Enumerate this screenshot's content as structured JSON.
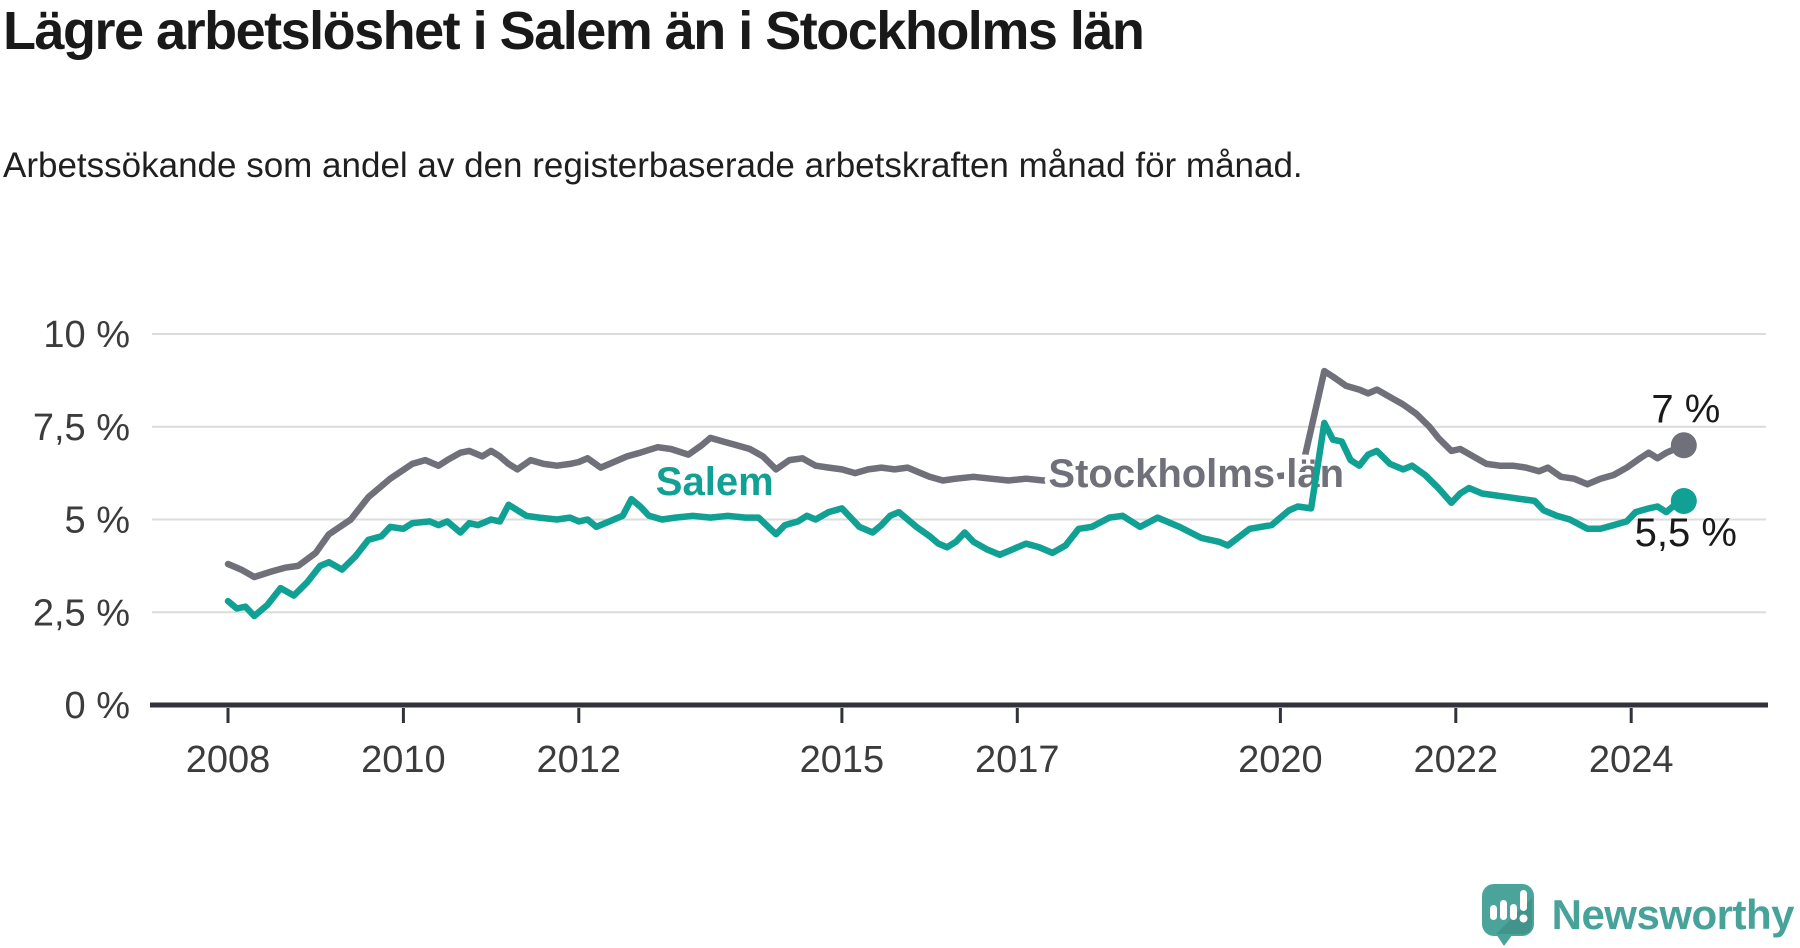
{
  "header": {
    "title": "Lägre arbetslöshet i Salem än i Stockholms län",
    "subtitle": "Arbetssökande som andel av den registerbaserade arbetskraften månad för månad."
  },
  "footer": {
    "brand": "Newsworthy"
  },
  "colors": {
    "salem_teal": "#10a094",
    "stockholm_gray": "#70707a",
    "grid": "#dcdcdc",
    "axis": "#32323a",
    "text_dark": "#1a1a1a",
    "logo_teal": "#4aa49a"
  },
  "chart_data": {
    "type": "line",
    "title": "Lägre arbetslöshet i Salem än i Stockholms län",
    "subtitle": "Arbetssökande som andel av den registerbaserade arbetskraften månad för månad.",
    "unit": "%",
    "grid": true,
    "legend": "inline-labels",
    "x_axis": {
      "ticks": [
        {
          "v": 2008,
          "label": "2008"
        },
        {
          "v": 2010,
          "label": "2010"
        },
        {
          "v": 2012,
          "label": "2012"
        },
        {
          "v": 2015,
          "label": "2015"
        },
        {
          "v": 2017,
          "label": "2017"
        },
        {
          "v": 2020,
          "label": "2020"
        },
        {
          "v": 2022,
          "label": "2022"
        },
        {
          "v": 2024,
          "label": "2024"
        }
      ],
      "range": [
        2007.1,
        2025.6
      ]
    },
    "y_axis": {
      "ticks": [
        {
          "v": 0,
          "label": "0 %"
        },
        {
          "v": 2.5,
          "label": "2,5 %"
        },
        {
          "v": 5,
          "label": "5 %"
        },
        {
          "v": 7.5,
          "label": "7,5 %"
        },
        {
          "v": 10,
          "label": "10 %"
        }
      ],
      "range": [
        0,
        10
      ]
    },
    "series": [
      {
        "name": "Stockholms län",
        "color": "#70707a",
        "end_label": "7 %",
        "end_label_position": "above",
        "label_x": 2019.04,
        "label_y": 5.88,
        "points": [
          [
            2008,
            3.8
          ],
          [
            2008.15,
            3.65
          ],
          [
            2008.3,
            3.45
          ],
          [
            2008.5,
            3.6
          ],
          [
            2008.65,
            3.7
          ],
          [
            2008.8,
            3.75
          ],
          [
            2009,
            4.1
          ],
          [
            2009.15,
            4.6
          ],
          [
            2009.4,
            5.0
          ],
          [
            2009.6,
            5.6
          ],
          [
            2009.85,
            6.1
          ],
          [
            2010.1,
            6.5
          ],
          [
            2010.25,
            6.6
          ],
          [
            2010.4,
            6.45
          ],
          [
            2010.5,
            6.6
          ],
          [
            2010.65,
            6.8
          ],
          [
            2010.75,
            6.85
          ],
          [
            2010.9,
            6.7
          ],
          [
            2011,
            6.85
          ],
          [
            2011.1,
            6.7
          ],
          [
            2011.2,
            6.5
          ],
          [
            2011.3,
            6.35
          ],
          [
            2011.45,
            6.6
          ],
          [
            2011.6,
            6.5
          ],
          [
            2011.75,
            6.45
          ],
          [
            2011.9,
            6.5
          ],
          [
            2012,
            6.55
          ],
          [
            2012.1,
            6.65
          ],
          [
            2012.25,
            6.4
          ],
          [
            2012.4,
            6.55
          ],
          [
            2012.55,
            6.7
          ],
          [
            2012.7,
            6.8
          ],
          [
            2012.9,
            6.95
          ],
          [
            2013.05,
            6.9
          ],
          [
            2013.25,
            6.75
          ],
          [
            2013.4,
            7.0
          ],
          [
            2013.5,
            7.2
          ],
          [
            2013.65,
            7.1
          ],
          [
            2013.8,
            7.0
          ],
          [
            2013.95,
            6.9
          ],
          [
            2014.1,
            6.7
          ],
          [
            2014.25,
            6.35
          ],
          [
            2014.4,
            6.6
          ],
          [
            2014.55,
            6.65
          ],
          [
            2014.7,
            6.45
          ],
          [
            2014.85,
            6.4
          ],
          [
            2015,
            6.35
          ],
          [
            2015.15,
            6.25
          ],
          [
            2015.3,
            6.35
          ],
          [
            2015.45,
            6.4
          ],
          [
            2015.6,
            6.35
          ],
          [
            2015.75,
            6.4
          ],
          [
            2015.9,
            6.25
          ],
          [
            2016,
            6.15
          ],
          [
            2016.15,
            6.05
          ],
          [
            2016.3,
            6.1
          ],
          [
            2016.5,
            6.15
          ],
          [
            2016.7,
            6.1
          ],
          [
            2016.9,
            6.05
          ],
          [
            2017.1,
            6.1
          ],
          [
            2017.3,
            6.05
          ],
          [
            2017.5,
            6.1
          ],
          [
            2017.7,
            6.0
          ],
          [
            2017.9,
            6.05
          ],
          [
            2018.1,
            6.1
          ],
          [
            2018.3,
            6.05
          ],
          [
            2018.5,
            6.1
          ],
          [
            2018.7,
            6.0
          ],
          [
            2018.9,
            5.95
          ],
          [
            2019.1,
            6.0
          ],
          [
            2019.3,
            6.05
          ],
          [
            2019.5,
            6.1
          ],
          [
            2019.7,
            6.1
          ],
          [
            2019.9,
            6.15
          ],
          [
            2020.1,
            6.2
          ],
          [
            2020.25,
            6.4
          ],
          [
            2020.5,
            9.0
          ],
          [
            2020.6,
            8.85
          ],
          [
            2020.75,
            8.6
          ],
          [
            2020.9,
            8.5
          ],
          [
            2021,
            8.4
          ],
          [
            2021.1,
            8.5
          ],
          [
            2021.25,
            8.3
          ],
          [
            2021.4,
            8.1
          ],
          [
            2021.55,
            7.85
          ],
          [
            2021.7,
            7.5
          ],
          [
            2021.8,
            7.2
          ],
          [
            2021.95,
            6.85
          ],
          [
            2022.05,
            6.9
          ],
          [
            2022.2,
            6.7
          ],
          [
            2022.35,
            6.5
          ],
          [
            2022.5,
            6.45
          ],
          [
            2022.65,
            6.45
          ],
          [
            2022.8,
            6.4
          ],
          [
            2022.95,
            6.3
          ],
          [
            2023.05,
            6.4
          ],
          [
            2023.2,
            6.15
          ],
          [
            2023.35,
            6.1
          ],
          [
            2023.5,
            5.95
          ],
          [
            2023.65,
            6.1
          ],
          [
            2023.8,
            6.2
          ],
          [
            2023.95,
            6.4
          ],
          [
            2024.1,
            6.65
          ],
          [
            2024.2,
            6.8
          ],
          [
            2024.3,
            6.65
          ],
          [
            2024.4,
            6.8
          ],
          [
            2024.5,
            6.9
          ],
          [
            2024.6,
            7.0
          ]
        ]
      },
      {
        "name": "Salem",
        "color": "#10a094",
        "end_label": "5,5 %",
        "end_label_position": "below",
        "label_x": 2013.55,
        "label_y": 5.66,
        "points": [
          [
            2008,
            2.8
          ],
          [
            2008.1,
            2.6
          ],
          [
            2008.2,
            2.65
          ],
          [
            2008.3,
            2.4
          ],
          [
            2008.45,
            2.7
          ],
          [
            2008.6,
            3.15
          ],
          [
            2008.75,
            2.95
          ],
          [
            2008.9,
            3.3
          ],
          [
            2009.05,
            3.75
          ],
          [
            2009.15,
            3.85
          ],
          [
            2009.3,
            3.65
          ],
          [
            2009.45,
            4.0
          ],
          [
            2009.6,
            4.45
          ],
          [
            2009.75,
            4.55
          ],
          [
            2009.85,
            4.8
          ],
          [
            2010,
            4.75
          ],
          [
            2010.1,
            4.9
          ],
          [
            2010.3,
            4.95
          ],
          [
            2010.4,
            4.85
          ],
          [
            2010.5,
            4.95
          ],
          [
            2010.65,
            4.65
          ],
          [
            2010.75,
            4.9
          ],
          [
            2010.85,
            4.85
          ],
          [
            2011,
            5.0
          ],
          [
            2011.1,
            4.95
          ],
          [
            2011.2,
            5.4
          ],
          [
            2011.3,
            5.25
          ],
          [
            2011.4,
            5.1
          ],
          [
            2011.55,
            5.05
          ],
          [
            2011.75,
            5.0
          ],
          [
            2011.9,
            5.05
          ],
          [
            2012,
            4.95
          ],
          [
            2012.1,
            5.0
          ],
          [
            2012.2,
            4.8
          ],
          [
            2012.35,
            4.95
          ],
          [
            2012.5,
            5.1
          ],
          [
            2012.6,
            5.55
          ],
          [
            2012.7,
            5.35
          ],
          [
            2012.8,
            5.1
          ],
          [
            2012.95,
            5.0
          ],
          [
            2013.1,
            5.05
          ],
          [
            2013.3,
            5.1
          ],
          [
            2013.5,
            5.05
          ],
          [
            2013.7,
            5.1
          ],
          [
            2013.9,
            5.05
          ],
          [
            2014.05,
            5.05
          ],
          [
            2014.25,
            4.6
          ],
          [
            2014.35,
            4.85
          ],
          [
            2014.5,
            4.95
          ],
          [
            2014.6,
            5.1
          ],
          [
            2014.7,
            5.0
          ],
          [
            2014.85,
            5.2
          ],
          [
            2015,
            5.3
          ],
          [
            2015.1,
            5.05
          ],
          [
            2015.2,
            4.8
          ],
          [
            2015.35,
            4.65
          ],
          [
            2015.45,
            4.85
          ],
          [
            2015.55,
            5.1
          ],
          [
            2015.65,
            5.2
          ],
          [
            2015.75,
            5.0
          ],
          [
            2015.85,
            4.8
          ],
          [
            2016,
            4.55
          ],
          [
            2016.1,
            4.35
          ],
          [
            2016.2,
            4.25
          ],
          [
            2016.3,
            4.4
          ],
          [
            2016.4,
            4.65
          ],
          [
            2016.5,
            4.4
          ],
          [
            2016.65,
            4.2
          ],
          [
            2016.8,
            4.05
          ],
          [
            2016.95,
            4.2
          ],
          [
            2017.1,
            4.35
          ],
          [
            2017.25,
            4.25
          ],
          [
            2017.4,
            4.1
          ],
          [
            2017.55,
            4.3
          ],
          [
            2017.7,
            4.75
          ],
          [
            2017.85,
            4.8
          ],
          [
            2018.05,
            5.05
          ],
          [
            2018.2,
            5.1
          ],
          [
            2018.4,
            4.8
          ],
          [
            2018.6,
            5.05
          ],
          [
            2018.85,
            4.8
          ],
          [
            2019.1,
            4.5
          ],
          [
            2019.3,
            4.4
          ],
          [
            2019.4,
            4.3
          ],
          [
            2019.65,
            4.75
          ],
          [
            2019.9,
            4.85
          ],
          [
            2020.1,
            5.25
          ],
          [
            2020.2,
            5.35
          ],
          [
            2020.35,
            5.3
          ],
          [
            2020.5,
            7.6
          ],
          [
            2020.6,
            7.15
          ],
          [
            2020.7,
            7.1
          ],
          [
            2020.8,
            6.6
          ],
          [
            2020.9,
            6.45
          ],
          [
            2021,
            6.75
          ],
          [
            2021.1,
            6.85
          ],
          [
            2021.25,
            6.5
          ],
          [
            2021.4,
            6.35
          ],
          [
            2021.5,
            6.45
          ],
          [
            2021.65,
            6.2
          ],
          [
            2021.8,
            5.85
          ],
          [
            2021.95,
            5.45
          ],
          [
            2022.05,
            5.7
          ],
          [
            2022.15,
            5.85
          ],
          [
            2022.3,
            5.7
          ],
          [
            2022.45,
            5.65
          ],
          [
            2022.6,
            5.6
          ],
          [
            2022.75,
            5.55
          ],
          [
            2022.9,
            5.5
          ],
          [
            2023,
            5.25
          ],
          [
            2023.15,
            5.1
          ],
          [
            2023.3,
            5.0
          ],
          [
            2023.5,
            4.75
          ],
          [
            2023.65,
            4.75
          ],
          [
            2023.8,
            4.85
          ],
          [
            2023.95,
            4.95
          ],
          [
            2024.05,
            5.2
          ],
          [
            2024.2,
            5.3
          ],
          [
            2024.3,
            5.35
          ],
          [
            2024.4,
            5.2
          ],
          [
            2024.5,
            5.4
          ],
          [
            2024.6,
            5.5
          ]
        ]
      }
    ]
  }
}
